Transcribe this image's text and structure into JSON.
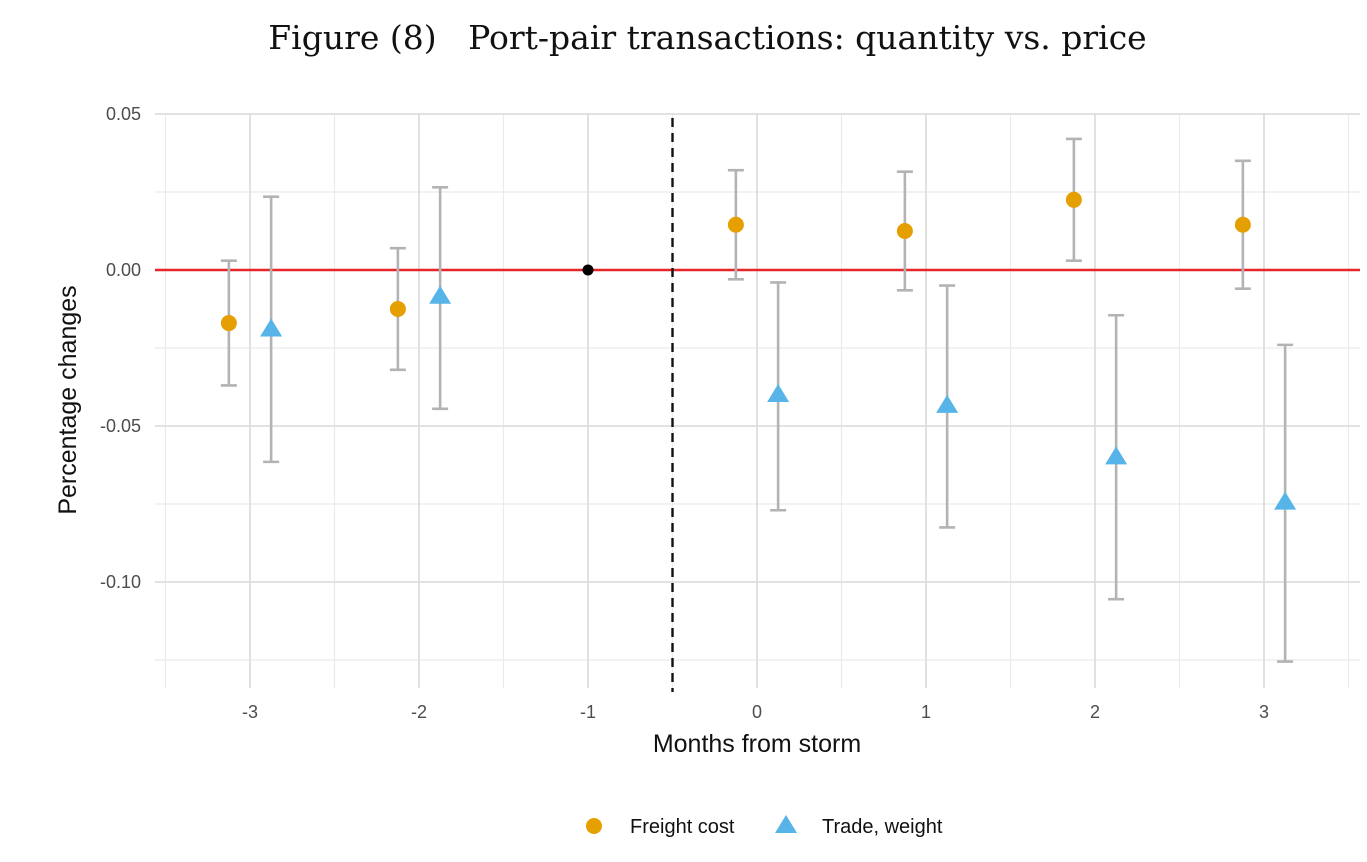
{
  "title": "Figure (8)   Port-pair transactions: quantity vs. price",
  "chart_data": {
    "type": "scatter",
    "title": "Figure (8)   Port-pair transactions: quantity vs. price",
    "xlabel": "Months from storm",
    "ylabel": "Percentage changes",
    "xlim": [
      -3.5,
      3.5
    ],
    "ylim": [
      -0.125,
      0.05
    ],
    "x_ticks": [
      -3,
      -2,
      -1,
      0,
      1,
      2,
      3
    ],
    "x_tick_labels": [
      "-3",
      "-2",
      "-1",
      "0",
      "1",
      "2",
      "3"
    ],
    "y_ticks": [
      0.05,
      0.0,
      -0.05,
      -0.1
    ],
    "y_tick_labels": [
      "0.05",
      "0.00",
      "-0.05",
      "-0.10"
    ],
    "reference_lines": {
      "horizontal_y": 0.0,
      "horizontal_color": "#e8262a",
      "vertical_x": -0.5,
      "vertical_style": "dashed"
    },
    "reference_point": {
      "x": -1,
      "y": 0.0,
      "color": "#000000"
    },
    "series": [
      {
        "name": "Freight cost",
        "marker": "circle",
        "color": "#E69F00",
        "points": [
          {
            "x": -3,
            "y": -0.017,
            "lo": -0.037,
            "hi": 0.003
          },
          {
            "x": -2,
            "y": -0.0125,
            "lo": -0.032,
            "hi": 0.007
          },
          {
            "x": 0,
            "y": 0.0145,
            "lo": -0.003,
            "hi": 0.032
          },
          {
            "x": 1,
            "y": 0.0125,
            "lo": -0.0065,
            "hi": 0.0315
          },
          {
            "x": 2,
            "y": 0.0225,
            "lo": 0.003,
            "hi": 0.042
          },
          {
            "x": 3,
            "y": 0.0145,
            "lo": -0.006,
            "hi": 0.035
          }
        ]
      },
      {
        "name": "Trade, weight",
        "marker": "triangle",
        "color": "#56B4E9",
        "points": [
          {
            "x": -3,
            "y": -0.019,
            "lo": -0.0615,
            "hi": 0.0235
          },
          {
            "x": -2,
            "y": -0.0085,
            "lo": -0.0445,
            "hi": 0.0265
          },
          {
            "x": 0,
            "y": -0.04,
            "lo": -0.077,
            "hi": -0.004
          },
          {
            "x": 1,
            "y": -0.0435,
            "lo": -0.0825,
            "hi": -0.005
          },
          {
            "x": 2,
            "y": -0.06,
            "lo": -0.1055,
            "hi": -0.0145
          },
          {
            "x": 3,
            "y": -0.0745,
            "lo": -0.1255,
            "hi": -0.024
          }
        ]
      }
    ],
    "errorbar_color": "#b3b3b3",
    "legend_position": "bottom",
    "grid": true
  }
}
